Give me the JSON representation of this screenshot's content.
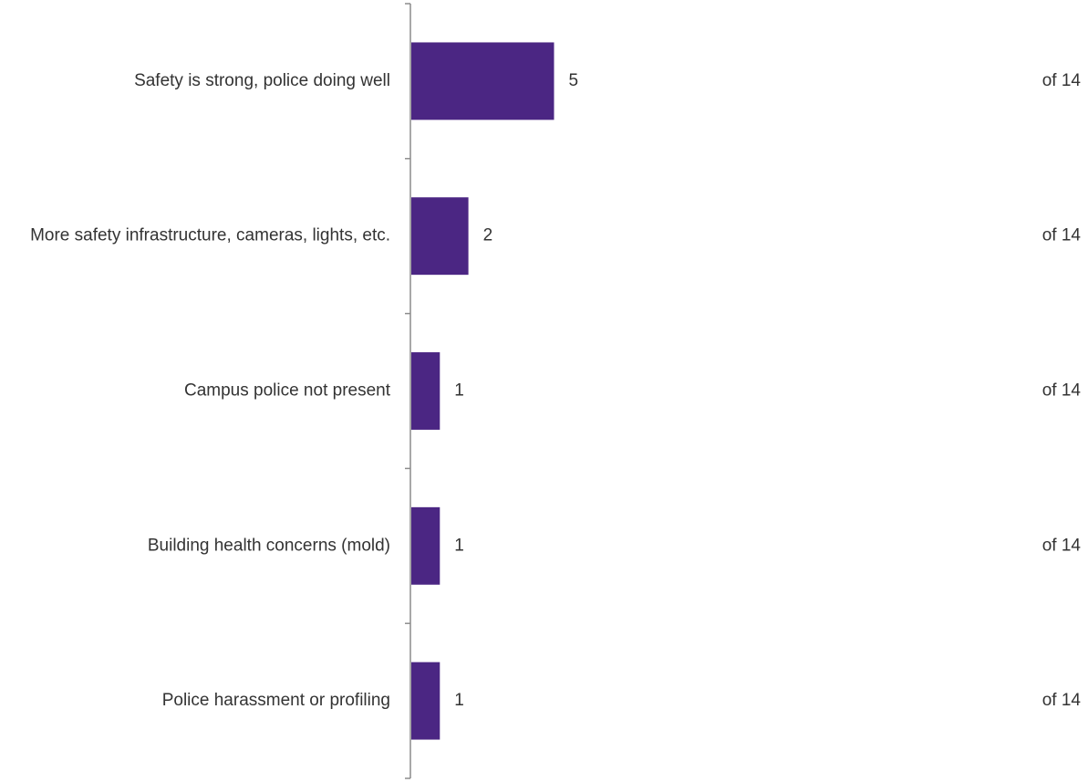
{
  "chart_data": {
    "type": "bar",
    "orientation": "horizontal",
    "categories": [
      "Safety is strong, police doing well",
      "More safety infrastructure, cameras, lights, etc.",
      "Campus police not present",
      "Building health concerns (mold)",
      "Police harassment or profiling"
    ],
    "values": [
      5,
      2,
      1,
      1,
      1
    ],
    "totals": [
      "of 14",
      "of 14",
      "of 14",
      "of 14",
      "of 14"
    ],
    "xlim": [
      0,
      14
    ],
    "grid": false,
    "legend": "none",
    "bar_color": "#4b2683"
  }
}
